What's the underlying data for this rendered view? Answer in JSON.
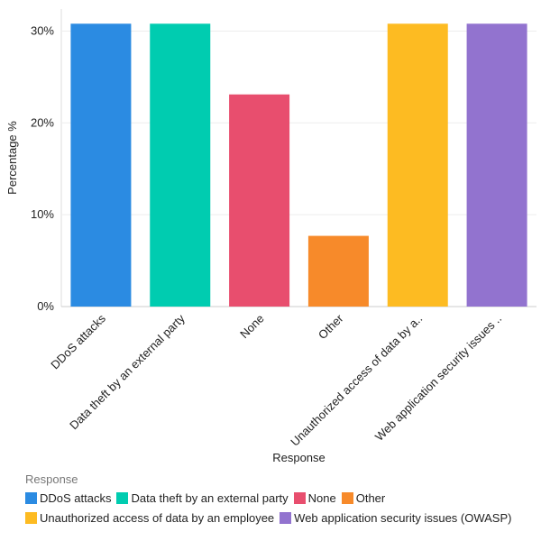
{
  "chart_data": {
    "type": "bar",
    "title": "",
    "xlabel": "Response",
    "ylabel": "Percentage %",
    "ylim": [
      0,
      32.4
    ],
    "yticks": [
      0,
      10,
      20,
      30
    ],
    "ytick_labels": [
      "0%",
      "10%",
      "20%",
      "30%"
    ],
    "grid": true,
    "legend_title": "Response",
    "legend_position": "bottom",
    "categories": [
      "DDoS attacks",
      "Data theft by an external party",
      "None",
      "Other",
      "Unauthorized access of data by an employee",
      "Web application security issues (OWASP)"
    ],
    "tick_labels": [
      "DDoS attacks",
      "Data theft by an external party",
      "None",
      "Other",
      "Unauthorized access of data by a..",
      "Web application security issues .."
    ],
    "values": [
      30.8,
      30.8,
      23.1,
      7.7,
      30.8,
      30.8
    ],
    "colors": [
      "#2B8BE2",
      "#00CCB0",
      "#E84E6E",
      "#F78A2A",
      "#FDBB22",
      "#9273CF"
    ]
  }
}
